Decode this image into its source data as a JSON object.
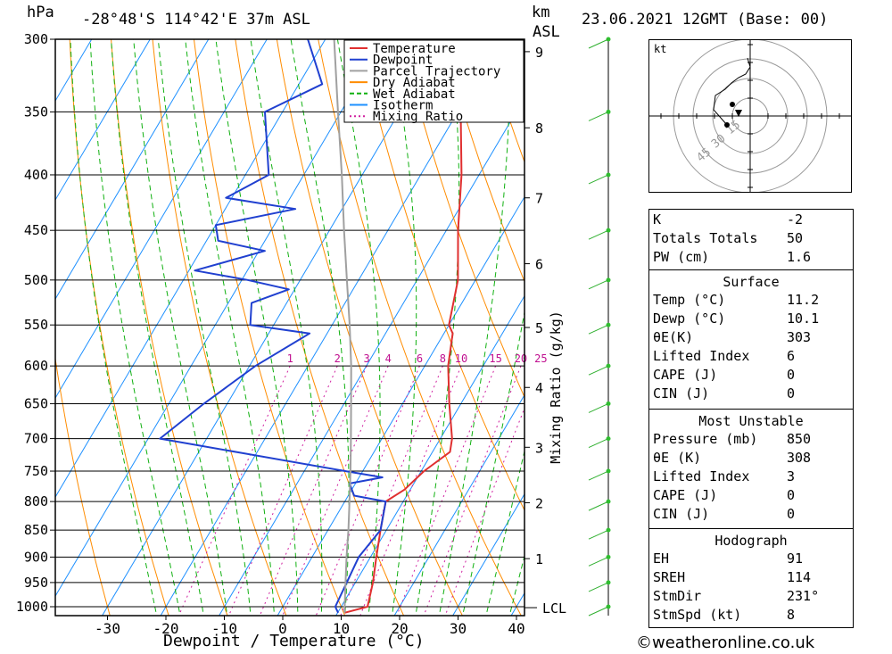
{
  "header": {
    "hpa_label": "hPa",
    "location": "-28°48'S  114°42'E  37m  ASL",
    "km_label": "km",
    "asl_label": "ASL",
    "datetime": "23.06.2021  12GMT  (Base: 00)"
  },
  "chart_data": {
    "type": "line",
    "subtype": "skew-T log-P diagram",
    "xlabel": "Dewpoint / Temperature (°C)",
    "ylabel_right": "Mixing Ratio (g/kg)",
    "x_ticks": [
      -30,
      -20,
      -10,
      0,
      10,
      20,
      30,
      40
    ],
    "x_range": [
      -40,
      40
    ],
    "pressure_levels": [
      300,
      350,
      400,
      450,
      500,
      550,
      600,
      650,
      700,
      750,
      800,
      850,
      900,
      950,
      1000
    ],
    "pressure_range": [
      300,
      1015
    ],
    "km_ticks": [
      {
        "km": "9",
        "p": 308
      },
      {
        "km": "8",
        "p": 362
      },
      {
        "km": "7",
        "p": 420
      },
      {
        "km": "6",
        "p": 483
      },
      {
        "km": "5",
        "p": 553
      },
      {
        "km": "4",
        "p": 628
      },
      {
        "km": "3",
        "p": 713
      },
      {
        "km": "2",
        "p": 802
      },
      {
        "km": "1",
        "p": 903
      }
    ],
    "lcl_label": "LCL",
    "lcl_pressure": 1002,
    "mixing_ratio_labels": [
      "1",
      "2",
      "3",
      "4",
      "6",
      "8",
      "10",
      "15",
      "20",
      "25"
    ],
    "legend": [
      {
        "name": "Temperature",
        "color": "#e03030",
        "style": "solid"
      },
      {
        "name": "Dewpoint",
        "color": "#2040d0",
        "style": "solid"
      },
      {
        "name": "Parcel Trajectory",
        "color": "#a0a0a0",
        "style": "solid"
      },
      {
        "name": "Dry Adiabat",
        "color": "#ff8c00",
        "style": "solid"
      },
      {
        "name": "Wet Adiabat",
        "color": "#10b010",
        "style": "dashed"
      },
      {
        "name": "Isotherm",
        "color": "#1e90ff",
        "style": "solid"
      },
      {
        "name": "Mixing Ratio",
        "color": "#d020a0",
        "style": "dotted"
      }
    ],
    "series": [
      {
        "name": "Temperature",
        "points": [
          [
            1013,
            11.2
          ],
          [
            1000,
            14.5
          ],
          [
            950,
            13.0
          ],
          [
            900,
            11.0
          ],
          [
            850,
            9.0
          ],
          [
            800,
            7.0
          ],
          [
            780,
            9.0
          ],
          [
            750,
            10.5
          ],
          [
            720,
            13.0
          ],
          [
            700,
            12.0
          ],
          [
            650,
            8.0
          ],
          [
            600,
            4.0
          ],
          [
            560,
            1.5
          ],
          [
            550,
            0.0
          ],
          [
            500,
            -3.0
          ],
          [
            450,
            -8.0
          ],
          [
            400,
            -13.0
          ],
          [
            350,
            -19.5
          ],
          [
            300,
            -26.0
          ]
        ]
      },
      {
        "name": "Dewpoint",
        "points": [
          [
            1013,
            10.1
          ],
          [
            1000,
            9.0
          ],
          [
            950,
            8.5
          ],
          [
            900,
            8.0
          ],
          [
            850,
            9.0
          ],
          [
            800,
            7.0
          ],
          [
            790,
            1.0
          ],
          [
            770,
            -1.0
          ],
          [
            760,
            4.0
          ],
          [
            750,
            -3.0
          ],
          [
            700,
            -38.0
          ],
          [
            650,
            -34.0
          ],
          [
            600,
            -29.0
          ],
          [
            560,
            -23.0
          ],
          [
            550,
            -34.0
          ],
          [
            525,
            -36.0
          ],
          [
            510,
            -31.0
          ],
          [
            500,
            -39.0
          ],
          [
            490,
            -49.0
          ],
          [
            470,
            -39.0
          ],
          [
            460,
            -48.0
          ],
          [
            445,
            -50.0
          ],
          [
            430,
            -38.0
          ],
          [
            420,
            -51.0
          ],
          [
            400,
            -46.0
          ],
          [
            350,
            -53.0
          ],
          [
            330,
            -46.0
          ],
          [
            300,
            -53.0
          ]
        ]
      },
      {
        "name": "Parcel Trajectory",
        "points": [
          [
            1013,
            11.2
          ],
          [
            1000,
            10.6
          ],
          [
            950,
            8.3
          ],
          [
            900,
            5.9
          ],
          [
            850,
            3.5
          ],
          [
            800,
            0.8
          ],
          [
            750,
            -2.1
          ],
          [
            700,
            -5.3
          ],
          [
            650,
            -8.8
          ],
          [
            600,
            -12.6
          ],
          [
            550,
            -17.0
          ],
          [
            500,
            -22.0
          ],
          [
            450,
            -27.5
          ],
          [
            400,
            -33.5
          ],
          [
            350,
            -40.5
          ],
          [
            300,
            -48.5
          ]
        ]
      }
    ]
  },
  "hodograph": {
    "unit": "kt",
    "ring_labels": [
      "15",
      "30",
      "45"
    ]
  },
  "indices": [
    {
      "label": "K",
      "value": "-2"
    },
    {
      "label": "Totals Totals",
      "value": "50"
    },
    {
      "label": "PW (cm)",
      "value": "1.6"
    }
  ],
  "surface": {
    "title": "Surface",
    "rows": [
      {
        "label": "Temp (°C)",
        "value": "11.2"
      },
      {
        "label": "Dewp (°C)",
        "value": "10.1"
      },
      {
        "label": "θE(K)",
        "value": "303"
      },
      {
        "label": "Lifted Index",
        "value": "6"
      },
      {
        "label": "CAPE (J)",
        "value": "0"
      },
      {
        "label": "CIN (J)",
        "value": "0"
      }
    ]
  },
  "most_unstable": {
    "title": "Most Unstable",
    "rows": [
      {
        "label": "Pressure (mb)",
        "value": "850"
      },
      {
        "label": "θE (K)",
        "value": "308"
      },
      {
        "label": "Lifted Index",
        "value": "3"
      },
      {
        "label": "CAPE (J)",
        "value": "0"
      },
      {
        "label": "CIN (J)",
        "value": "0"
      }
    ]
  },
  "hodo_params": {
    "title": "Hodograph",
    "rows": [
      {
        "label": "EH",
        "value": "91"
      },
      {
        "label": "SREH",
        "value": "114"
      },
      {
        "label": "StmDir",
        "value": "231°"
      },
      {
        "label": "StmSpd (kt)",
        "value": "8"
      }
    ]
  },
  "footer": {
    "copyright": "©weatheronline.co.uk"
  }
}
